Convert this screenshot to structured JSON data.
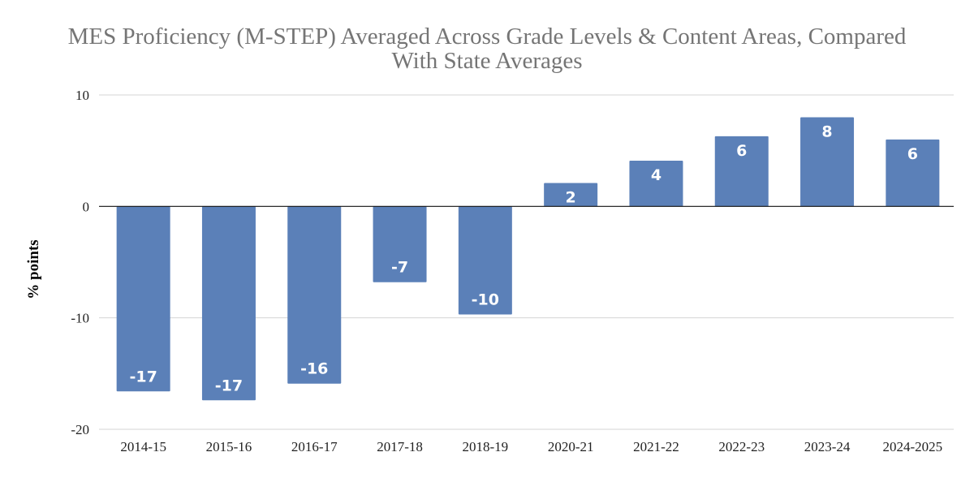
{
  "chart_data": {
    "type": "bar",
    "title": "MES Proficiency (M-STEP) Averaged Across Grade Levels & Content Areas, Compared With State Averages",
    "title_lines": [
      "MES Proficiency (M-STEP) Averaged Across Grade Levels & Content Areas, Compared",
      "With State Averages"
    ],
    "xlabel": "",
    "ylabel": "% points",
    "categories": [
      "2014-15",
      "2015-16",
      "2016-17",
      "2017-18",
      "2018-19",
      "2020-21",
      "2021-22",
      "2022-23",
      "2023-24",
      "2024-2025"
    ],
    "values": [
      -16.6,
      -17.4,
      -15.9,
      -6.8,
      -9.7,
      2.1,
      4.1,
      6.3,
      8.0,
      6.0
    ],
    "data_labels": [
      "-17",
      "-17",
      "-16",
      "-7",
      "-10",
      "2",
      "4",
      "6",
      "8",
      "6"
    ],
    "ylim": [
      -20,
      10
    ],
    "yticks": [
      "10",
      "0",
      "-10",
      "-20"
    ],
    "grid": true,
    "legend": "none",
    "bar_color": "#5b80b8"
  }
}
